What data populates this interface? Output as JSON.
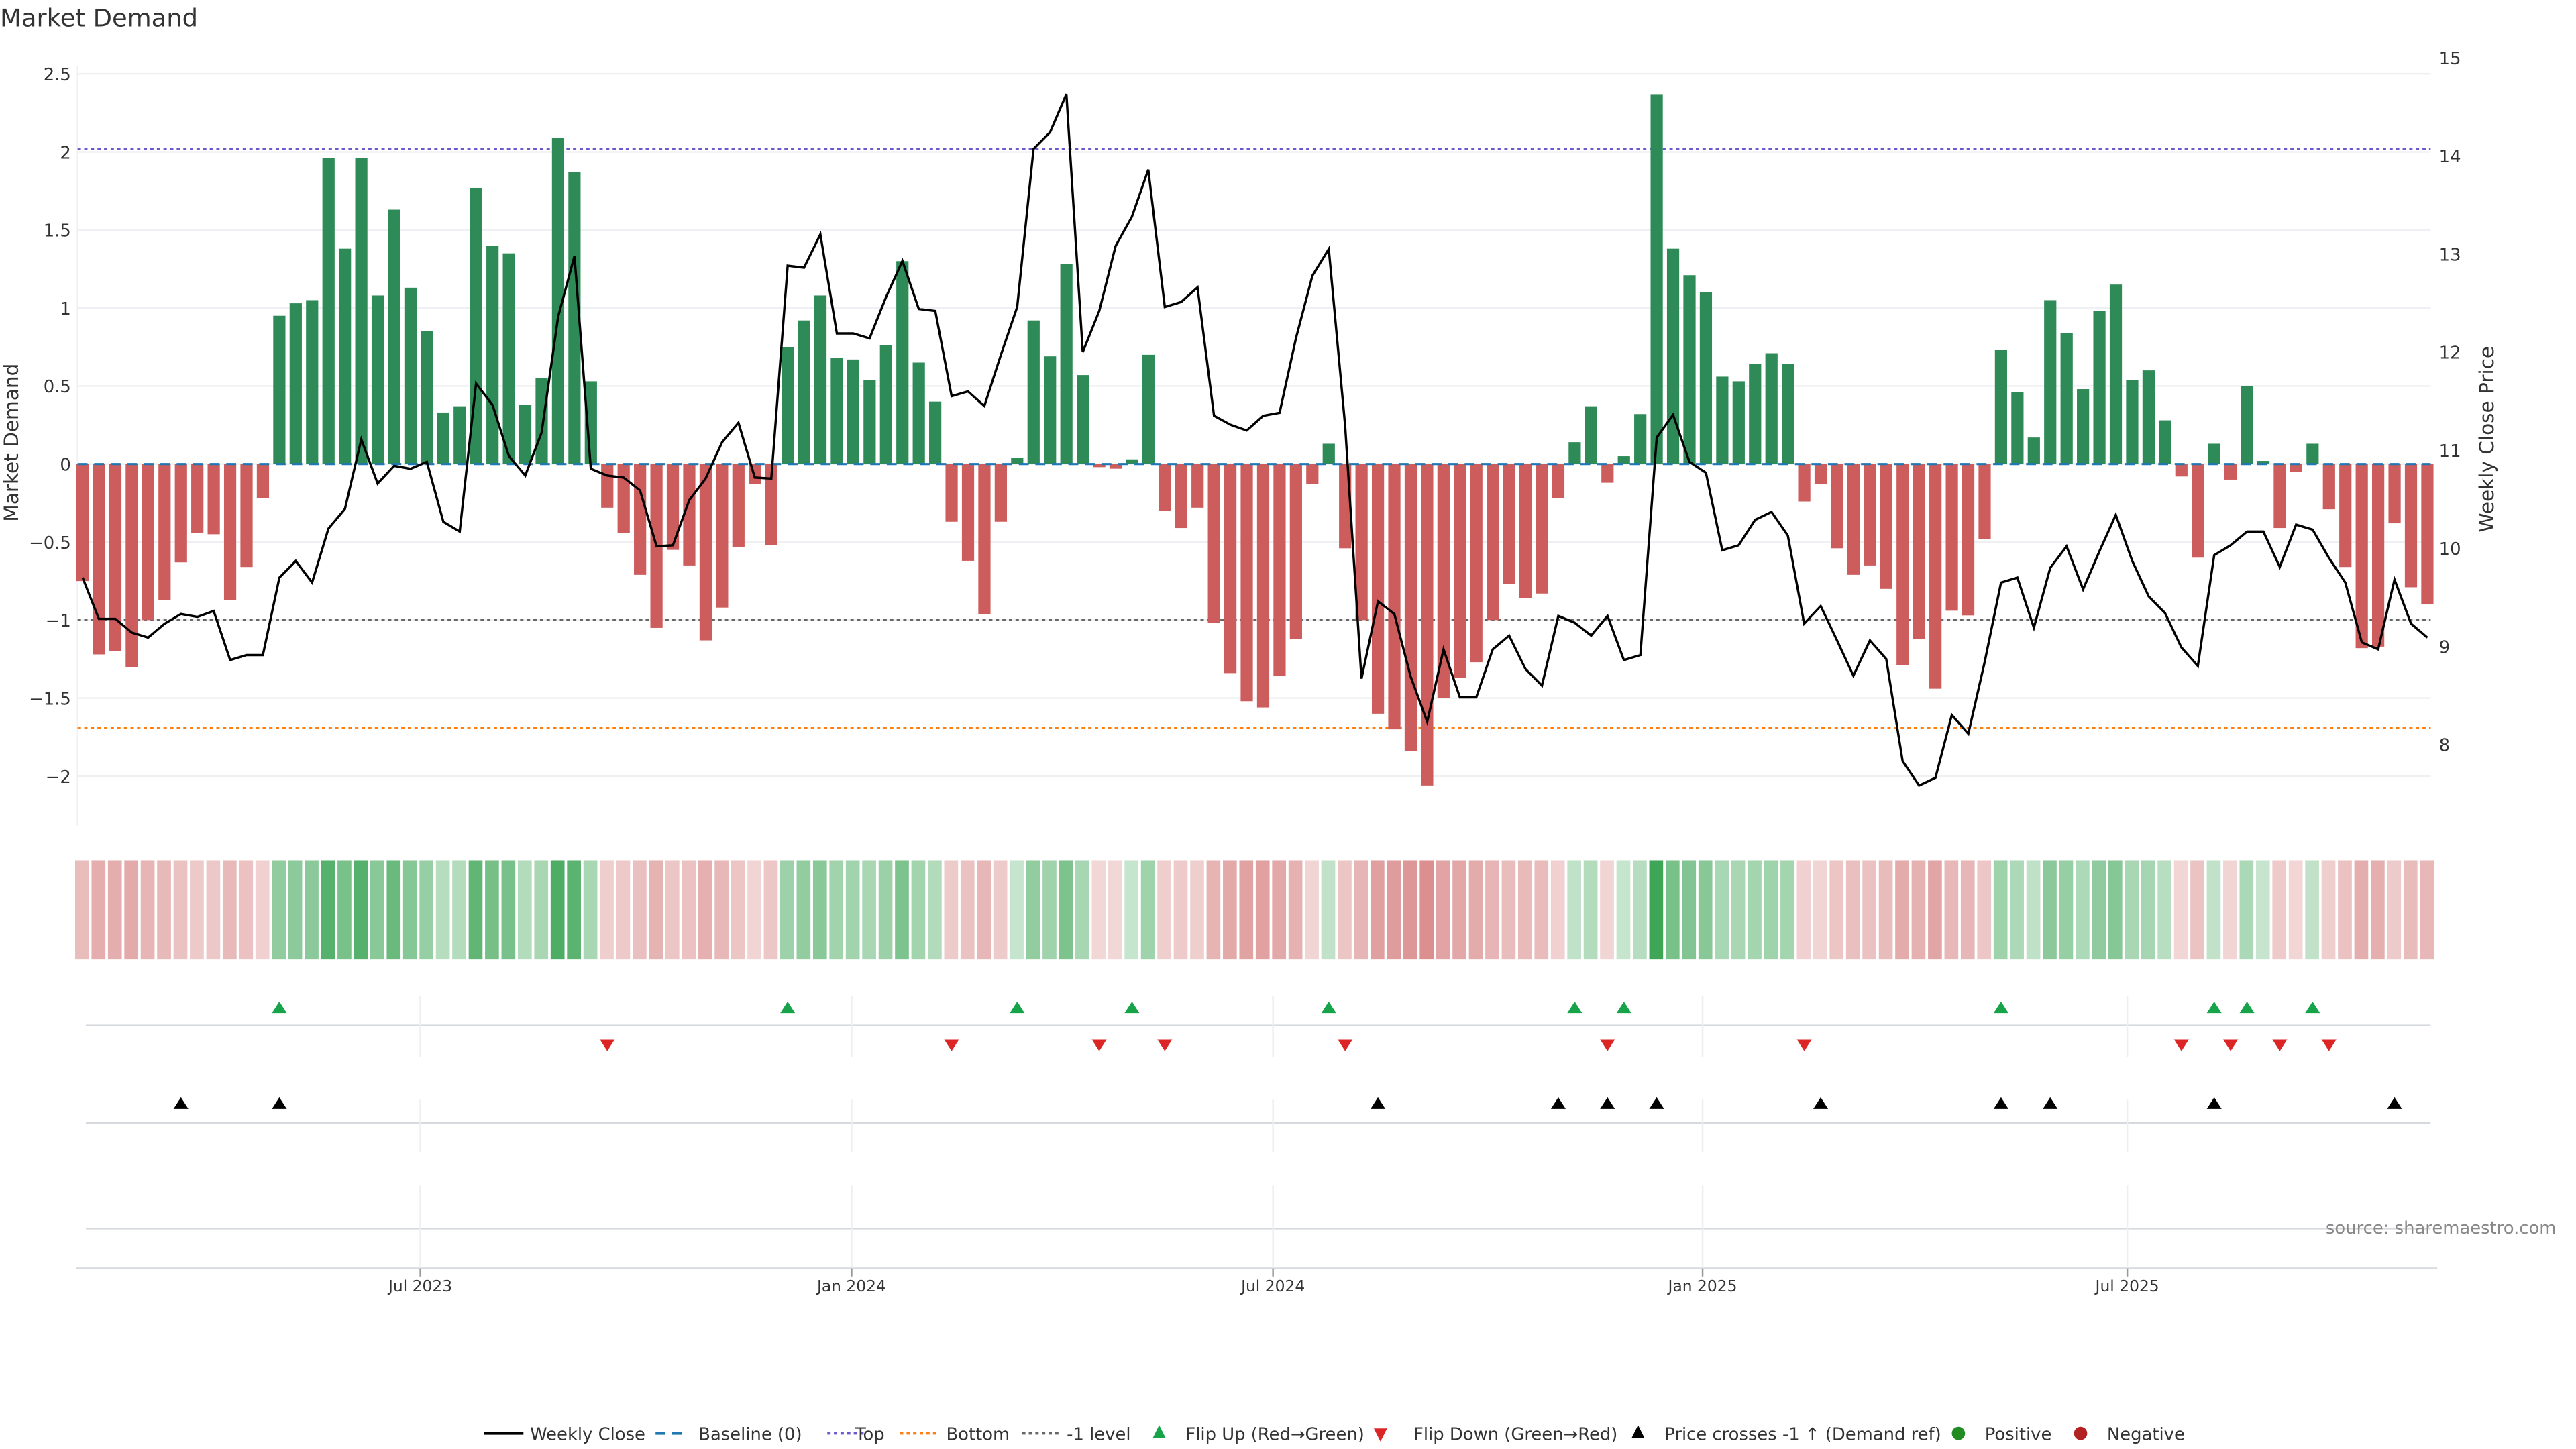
{
  "chart_data": {
    "type": "bar",
    "title": "Market Demand",
    "ylabel": "Market Demand",
    "y2label": "Weekly Close Price",
    "ylim": [
      -2.3,
      2.6
    ],
    "y2lim": [
      7.5,
      15.2
    ],
    "yticks": [
      2.5,
      2,
      1.5,
      1,
      0.5,
      0,
      -0.5,
      -1,
      -1.5,
      -2
    ],
    "yticklabels": [
      "2.5",
      "2",
      "1.5",
      "1",
      "0.5",
      "0",
      "−0.5",
      "−1",
      "−1.5",
      "−2"
    ],
    "y2ticks": [
      15,
      14,
      13,
      12,
      11,
      10,
      9,
      8
    ],
    "y2ticklabels": [
      "15",
      "14",
      "13",
      "12",
      "11",
      "10",
      "9",
      "8"
    ],
    "xticks": [
      {
        "label": "Jul 2023",
        "index": 20.6
      },
      {
        "label": "Jan 2024",
        "index": 46.9
      },
      {
        "label": "Jul 2024",
        "index": 72.6
      },
      {
        "label": "Jan 2025",
        "index": 98.8
      },
      {
        "label": "Jul 2025",
        "index": 124.7
      }
    ],
    "reference_lines": {
      "baseline": 0,
      "top": 2.02,
      "bottom": -1.69,
      "minus_one": -1
    },
    "demand": [
      -0.75,
      -1.22,
      -1.2,
      -1.3,
      -1.0,
      -0.87,
      -0.63,
      -0.44,
      -0.45,
      -0.87,
      -0.66,
      -0.22,
      0.95,
      1.03,
      1.05,
      1.96,
      1.38,
      1.96,
      1.08,
      1.63,
      1.13,
      0.85,
      0.33,
      0.37,
      1.77,
      1.4,
      1.35,
      0.38,
      0.55,
      2.09,
      1.87,
      0.53,
      -0.28,
      -0.44,
      -0.71,
      -1.05,
      -0.55,
      -0.65,
      -1.13,
      -0.92,
      -0.53,
      -0.13,
      -0.52,
      0.75,
      0.92,
      1.08,
      0.68,
      0.67,
      0.54,
      0.76,
      1.3,
      0.65,
      0.4,
      -0.37,
      -0.62,
      -0.96,
      -0.37,
      0.04,
      0.92,
      0.69,
      1.28,
      0.57,
      -0.02,
      -0.03,
      0.03,
      0.7,
      -0.3,
      -0.41,
      -0.28,
      -1.02,
      -1.34,
      -1.52,
      -1.56,
      -1.36,
      -1.12,
      -0.13,
      0.13,
      -0.54,
      -1.0,
      -1.6,
      -1.7,
      -1.84,
      -2.06,
      -1.5,
      -1.37,
      -1.27,
      -1.0,
      -0.77,
      -0.86,
      -0.83,
      -0.22,
      0.14,
      0.37,
      -0.12,
      0.05,
      0.32,
      2.37,
      1.38,
      1.21,
      1.1,
      0.56,
      0.53,
      0.64,
      0.71,
      0.64,
      -0.24,
      -0.13,
      -0.54,
      -0.71,
      -0.65,
      -0.8,
      -1.29,
      -1.12,
      -1.44,
      -0.94,
      -0.97,
      -0.48,
      0.73,
      0.46,
      0.17,
      1.05,
      0.84,
      0.48,
      0.98,
      1.15,
      0.54,
      0.6,
      0.28,
      -0.08,
      -0.6,
      0.13,
      -0.1,
      0.5,
      0.02,
      -0.41,
      -0.05,
      0.13,
      -0.29,
      -0.66,
      -1.18,
      -1.17,
      -0.38,
      -0.79,
      -0.9
    ],
    "weekly_close": [
      9.7,
      9.28,
      9.28,
      9.14,
      9.09,
      9.23,
      9.33,
      9.3,
      9.36,
      8.86,
      8.91,
      8.91,
      9.7,
      9.87,
      9.65,
      10.2,
      10.4,
      11.11,
      10.66,
      10.84,
      10.81,
      10.88,
      10.27,
      10.17,
      11.68,
      11.46,
      10.94,
      10.74,
      11.18,
      12.36,
      12.98,
      10.81,
      10.74,
      10.72,
      10.59,
      10.02,
      10.03,
      10.49,
      10.71,
      11.08,
      11.28,
      10.72,
      10.71,
      12.88,
      12.86,
      13.2,
      12.19,
      12.19,
      12.14,
      12.56,
      12.93,
      12.44,
      12.42,
      11.55,
      11.6,
      11.45,
      11.97,
      12.46,
      14.07,
      14.24,
      14.63,
      12.0,
      12.42,
      13.08,
      13.38,
      13.86,
      12.46,
      12.51,
      12.66,
      11.35,
      11.26,
      11.2,
      11.35,
      11.38,
      12.14,
      12.78,
      13.05,
      11.25,
      8.67,
      9.46,
      9.33,
      8.69,
      8.23,
      8.97,
      8.48,
      8.48,
      8.97,
      9.11,
      8.77,
      8.6,
      9.31,
      9.24,
      9.11,
      9.31,
      8.86,
      8.91,
      11.13,
      11.36,
      10.88,
      10.77,
      9.98,
      10.03,
      10.29,
      10.37,
      10.13,
      9.23,
      9.41,
      9.06,
      8.7,
      9.06,
      8.87,
      7.83,
      7.58,
      7.66,
      8.3,
      8.11,
      8.84,
      9.65,
      9.7,
      9.19,
      9.8,
      10.02,
      9.58,
      9.97,
      10.34,
      9.87,
      9.51,
      9.34,
      8.99,
      8.8,
      9.93,
      10.03,
      10.17,
      10.17,
      9.81,
      10.24,
      10.19,
      9.9,
      9.65,
      9.04,
      8.97,
      9.68,
      9.23,
      9.09
    ],
    "flip_up_indices": [
      12,
      43,
      57,
      64,
      76,
      91,
      94,
      117,
      130,
      132,
      136
    ],
    "flip_down_indices": [
      32,
      53,
      62,
      66,
      77,
      93,
      105,
      128,
      131,
      134,
      137
    ],
    "price_cross_indices": [
      6,
      12,
      79,
      90,
      93,
      96,
      106,
      117,
      120,
      130,
      141
    ],
    "legend": {
      "placement": "bottom-center",
      "items": [
        "Weekly Close",
        "Baseline (0)",
        "Top",
        "Bottom",
        "-1 level",
        "Flip Up (Red→Green)",
        "Flip Down (Green→Red)",
        "Price crosses -1 ↑ (Demand ref)",
        "Positive",
        "Negative"
      ]
    },
    "source": "source: sharemaestro.com"
  },
  "colors": {
    "positive": "#2e8b57",
    "negative": "#cd5c5c",
    "line": "#000000",
    "baseline": "#1f77b4",
    "top": "#6a5acd",
    "bottom": "#ff7f0e",
    "minus_one": "#666666",
    "flip_up": "#16a34a",
    "flip_down": "#dc2626",
    "cross": "#000000",
    "legend_positive": "#228b22",
    "legend_negative": "#b22222"
  }
}
